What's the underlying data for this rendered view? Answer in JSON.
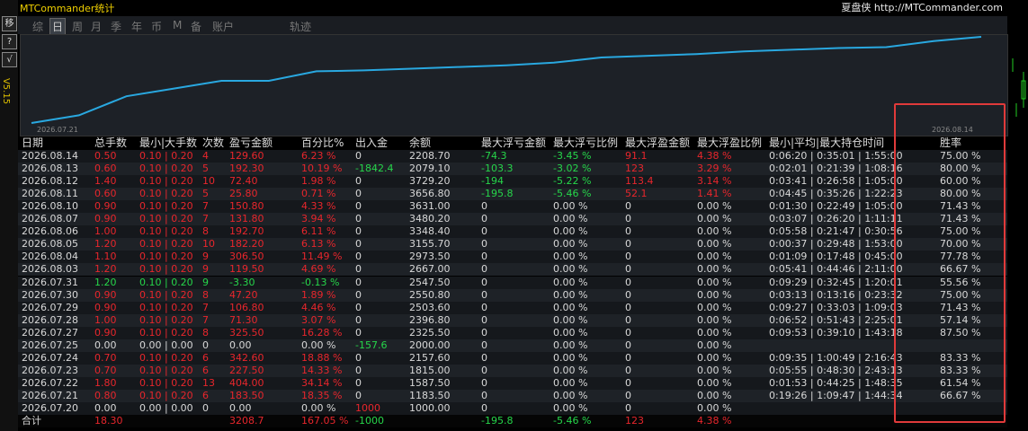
{
  "header": {
    "title": "MTCommander统计",
    "brand": "夏盘侠 http://MTCommander.com"
  },
  "sidebar": {
    "buttons": [
      "移",
      "?",
      "√"
    ],
    "version": "V5.15"
  },
  "tabs": {
    "items": [
      "综",
      "日",
      "周",
      "月",
      "季",
      "年",
      "币",
      "M",
      "备",
      "账户",
      "轨迹"
    ],
    "active": 1
  },
  "equity_curve": {
    "start_label": "2026.07.21",
    "end_label": "2026.08.14",
    "color": "#29a8e0",
    "values": [
      0,
      9,
      31,
      40,
      49,
      49,
      60,
      61,
      63,
      65,
      67,
      70,
      76,
      78,
      80,
      83,
      85,
      87,
      88,
      95,
      100
    ]
  },
  "table": {
    "columns": [
      "日期",
      "总手数",
      "最小|大手数",
      "次数",
      "盈亏金额",
      "百分比%",
      "出入金",
      "余额",
      "最大浮亏金额",
      "最大浮亏比例",
      "最大浮盈金额",
      "最大浮盈比例",
      "最小|平均|最大持仓时间",
      "胜率"
    ],
    "highlight_column": 13,
    "rows": [
      {
        "tone": "red",
        "cells": [
          "2026.08.14",
          "0.50",
          "0.10 | 0.20",
          "4",
          "129.60",
          "6.23 %",
          "0",
          "2208.70",
          "-74.3",
          "-3.45 %",
          "91.1",
          "4.38 %",
          "0:06:20 | 0:35:01 | 1:55:00",
          "75.00 %"
        ]
      },
      {
        "tone": "red",
        "cells": [
          "2026.08.13",
          "0.60",
          "0.10 | 0.20",
          "5",
          "192.30",
          "10.19 %",
          "-1842.4",
          "2079.10",
          "-103.3",
          "-3.02 %",
          "123",
          "3.29 %",
          "0:02:01 | 0:21:39 | 1:08:16",
          "80.00 %"
        ]
      },
      {
        "tone": "red",
        "cells": [
          "2026.08.12",
          "1.40",
          "0.10 | 0.20",
          "10",
          "72.40",
          "1.98 %",
          "0",
          "3729.20",
          "-194",
          "-5.22 %",
          "113.4",
          "3.14 %",
          "0:03:41 | 0:26:58 | 1:05:00",
          "60.00 %"
        ]
      },
      {
        "tone": "red",
        "cells": [
          "2026.08.11",
          "0.60",
          "0.10 | 0.20",
          "5",
          "25.80",
          "0.71 %",
          "0",
          "3656.80",
          "-195.8",
          "-5.46 %",
          "52.1",
          "1.41 %",
          "0:04:45 | 0:35:26 | 1:22:23",
          "80.00 %"
        ]
      },
      {
        "tone": "red",
        "cells": [
          "2026.08.10",
          "0.90",
          "0.10 | 0.20",
          "7",
          "150.80",
          "4.33 %",
          "0",
          "3631.00",
          "0",
          "0.00 %",
          "0",
          "0.00 %",
          "0:01:30 | 0:22:49 | 1:05:00",
          "71.43 %"
        ]
      },
      {
        "tone": "red",
        "cells": [
          "2026.08.07",
          "0.90",
          "0.10 | 0.20",
          "7",
          "131.80",
          "3.94 %",
          "0",
          "3480.20",
          "0",
          "0.00 %",
          "0",
          "0.00 %",
          "0:03:07 | 0:26:20 | 1:11:11",
          "71.43 %"
        ]
      },
      {
        "tone": "red",
        "cells": [
          "2026.08.06",
          "1.00",
          "0.10 | 0.20",
          "8",
          "192.70",
          "6.11 %",
          "0",
          "3348.40",
          "0",
          "0.00 %",
          "0",
          "0.00 %",
          "0:05:58 | 0:21:47 | 0:30:56",
          "75.00 %"
        ]
      },
      {
        "tone": "red",
        "cells": [
          "2026.08.05",
          "1.20",
          "0.10 | 0.20",
          "10",
          "182.20",
          "6.13 %",
          "0",
          "3155.70",
          "0",
          "0.00 %",
          "0",
          "0.00 %",
          "0:00:37 | 0:29:48 | 1:53:00",
          "70.00 %"
        ]
      },
      {
        "tone": "red",
        "cells": [
          "2026.08.04",
          "1.10",
          "0.10 | 0.20",
          "9",
          "306.50",
          "11.49 %",
          "0",
          "2973.50",
          "0",
          "0.00 %",
          "0",
          "0.00 %",
          "0:01:09 | 0:17:48 | 0:45:00",
          "77.78 %"
        ]
      },
      {
        "tone": "red",
        "cells": [
          "2026.08.03",
          "1.20",
          "0.10 | 0.20",
          "9",
          "119.50",
          "4.69 %",
          "0",
          "2667.00",
          "0",
          "0.00 %",
          "0",
          "0.00 %",
          "0:05:41 | 0:44:46 | 2:11:00",
          "66.67 %"
        ]
      },
      {
        "tone": "green",
        "cells": [
          "2026.07.31",
          "1.20",
          "0.10 | 0.20",
          "9",
          "-3.30",
          "-0.13 %",
          "0",
          "2547.50",
          "0",
          "0.00 %",
          "0",
          "0.00 %",
          "0:09:29 | 0:32:45 | 1:20:01",
          "55.56 %"
        ]
      },
      {
        "tone": "red",
        "cells": [
          "2026.07.30",
          "0.90",
          "0.10 | 0.20",
          "8",
          "47.20",
          "1.89 %",
          "0",
          "2550.80",
          "0",
          "0.00 %",
          "0",
          "0.00 %",
          "0:03:13 | 0:13:16 | 0:23:32",
          "75.00 %"
        ]
      },
      {
        "tone": "red",
        "cells": [
          "2026.07.29",
          "0.90",
          "0.10 | 0.20",
          "7",
          "106.80",
          "4.46 %",
          "0",
          "2503.60",
          "0",
          "0.00 %",
          "0",
          "0.00 %",
          "0:09:27 | 0:33:03 | 1:09:03",
          "71.43 %"
        ]
      },
      {
        "tone": "red",
        "cells": [
          "2026.07.28",
          "1.00",
          "0.10 | 0.20",
          "7",
          "71.30",
          "3.07 %",
          "0",
          "2396.80",
          "0",
          "0.00 %",
          "0",
          "0.00 %",
          "0:06:52 | 0:51:43 | 2:25:01",
          "57.14 %"
        ]
      },
      {
        "tone": "red",
        "cells": [
          "2026.07.27",
          "0.90",
          "0.10 | 0.20",
          "8",
          "325.50",
          "16.28 %",
          "0",
          "2325.50",
          "0",
          "0.00 %",
          "0",
          "0.00 %",
          "0:09:53 | 0:39:10 | 1:43:18",
          "87.50 %"
        ]
      },
      {
        "tone": "white",
        "cells": [
          "2026.07.25",
          "0.00",
          "0.00 | 0.00",
          "0",
          "0.00",
          "0.00 %",
          "-157.6",
          "2000.00",
          "0",
          "0.00 %",
          "0",
          "0.00 %",
          null,
          null
        ]
      },
      {
        "tone": "red",
        "cells": [
          "2026.07.24",
          "0.70",
          "0.10 | 0.20",
          "6",
          "342.60",
          "18.88 %",
          "0",
          "2157.60",
          "0",
          "0.00 %",
          "0",
          "0.00 %",
          "0:09:35 | 1:00:49 | 2:16:43",
          "83.33 %"
        ]
      },
      {
        "tone": "red",
        "cells": [
          "2026.07.23",
          "0.70",
          "0.10 | 0.20",
          "6",
          "227.50",
          "14.33 %",
          "0",
          "1815.00",
          "0",
          "0.00 %",
          "0",
          "0.00 %",
          "0:05:55 | 0:48:30 | 2:43:13",
          "83.33 %"
        ]
      },
      {
        "tone": "red",
        "cells": [
          "2026.07.22",
          "1.80",
          "0.10 | 0.20",
          "13",
          "404.00",
          "34.14 %",
          "0",
          "1587.50",
          "0",
          "0.00 %",
          "0",
          "0.00 %",
          "0:01:53 | 0:44:25 | 1:48:35",
          "61.54 %"
        ]
      },
      {
        "tone": "red",
        "cells": [
          "2026.07.21",
          "0.80",
          "0.10 | 0.20",
          "6",
          "183.50",
          "18.35 %",
          "0",
          "1183.50",
          "0",
          "0.00 %",
          "0",
          "0.00 %",
          "0:19:26 | 1:09:47 | 1:44:34",
          "66.67 %"
        ]
      },
      {
        "tone": "white",
        "cells": [
          "2026.07.20",
          "0.00",
          "0.00 | 0.00",
          "0",
          "0.00",
          "0.00 %",
          "1000",
          "1000.00",
          "0",
          "0.00 %",
          "0",
          "0.00 %",
          null,
          null
        ]
      }
    ],
    "total": {
      "tone": "red",
      "cells": [
        "合计",
        "18.30",
        null,
        null,
        "3208.7",
        "167.05 %",
        "-1000",
        null,
        "-195.8",
        "-5.46 %",
        "123",
        "4.38 %",
        null,
        null
      ]
    }
  }
}
